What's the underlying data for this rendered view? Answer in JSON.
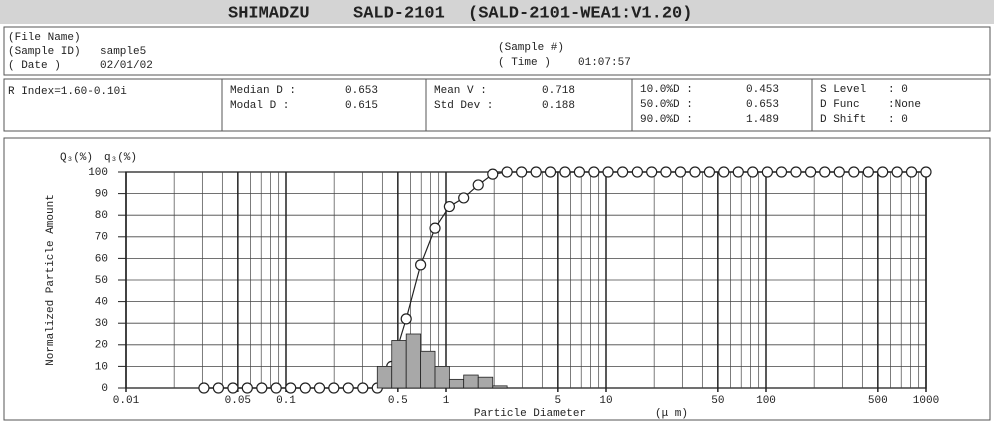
{
  "report": {
    "header": {
      "maker": "SHIMADZU",
      "model": "SALD-2101",
      "version": "(SALD-2101-WEA1:V1.20)"
    },
    "sample": {
      "file_label": "(File Name)",
      "id_label": "(Sample ID)",
      "id": "sample5",
      "date_label": "( Date  )",
      "date": "02/01/02",
      "number_label": "(Sample #)",
      "time_label": "( Time  )",
      "time": "01:07:57"
    },
    "stats": {
      "r_index": "R Index=1.60-0.10i",
      "median_label": "Median D :",
      "median": 0.653,
      "modal_label": "Modal  D :",
      "modal": 0.615,
      "mean_label": "Mean V  :",
      "mean": 0.718,
      "std_label": "Std Dev :",
      "std": 0.188,
      "d10_label": "10.0%D :",
      "d10": 0.453,
      "d50_label": "50.0%D :",
      "d50": 0.653,
      "d90_label": "90.0%D :",
      "d90": 1.489,
      "s_level_label": "S Level",
      "s_level": ": 0",
      "d_func_label": "D Func",
      "d_func": ":None",
      "d_shift_label": "D Shift",
      "d_shift": ": 0"
    }
  },
  "chart_data": {
    "type": "combo",
    "xlabel": "Particle Diameter",
    "xunit": "(μ m)",
    "ylabel": "Normalized Particle Amount",
    "x": [
      0.0307,
      0.0378,
      0.0466,
      0.0573,
      0.0706,
      0.0868,
      0.107,
      0.132,
      0.162,
      0.199,
      0.245,
      0.302,
      0.372,
      0.458,
      0.564,
      0.694,
      0.854,
      1.05,
      1.29,
      1.59,
      1.96,
      2.41,
      2.97,
      3.66,
      4.5,
      5.54,
      6.82,
      8.4,
      10.3,
      12.7,
      15.7,
      19.3,
      23.7,
      29.2,
      36,
      44.3,
      54.5,
      67.1,
      82.6,
      102,
      125,
      154,
      190,
      233,
      287,
      354,
      436,
      536,
      660,
      812,
      1000
    ],
    "series": [
      {
        "name": "Q₃(%)",
        "type": "line",
        "color": "#222222",
        "values": [
          0,
          0,
          0,
          0,
          0,
          0,
          0,
          0,
          0,
          0,
          0,
          0,
          0,
          10,
          32,
          57,
          74,
          84,
          88,
          94,
          99,
          100,
          100,
          100,
          100,
          100,
          100,
          100,
          100,
          100,
          100,
          100,
          100,
          100,
          100,
          100,
          100,
          100,
          100,
          100,
          100,
          100,
          100,
          100,
          100,
          100,
          100,
          100,
          100,
          100,
          100
        ]
      },
      {
        "name": "q₃(%)",
        "type": "histogram",
        "color": "#a8a8a8",
        "bins": [
          0.372,
          0.458,
          0.564,
          0.694,
          0.854,
          1.05,
          1.29,
          1.59,
          1.96,
          2.41
        ],
        "values": [
          10,
          22,
          25,
          17,
          10,
          4,
          6,
          5,
          1
        ]
      }
    ],
    "xscale": "log",
    "xlim": [
      0.01,
      1000
    ],
    "xticks": [
      0.01,
      0.05,
      0.1,
      0.5,
      1,
      5,
      10,
      50,
      100,
      500,
      1000
    ],
    "xminor": [
      0.02,
      0.03,
      0.04,
      0.06,
      0.07,
      0.08,
      0.09,
      0.2,
      0.3,
      0.4,
      0.6,
      0.7,
      0.8,
      0.9,
      2,
      3,
      4,
      6,
      7,
      8,
      9,
      20,
      30,
      40,
      60,
      70,
      80,
      90,
      200,
      300,
      400,
      600,
      700,
      800,
      900
    ],
    "ylim": [
      0,
      100
    ],
    "yticks": [
      0,
      10,
      20,
      30,
      40,
      50,
      60,
      70,
      80,
      90,
      100
    ],
    "grid": true
  }
}
